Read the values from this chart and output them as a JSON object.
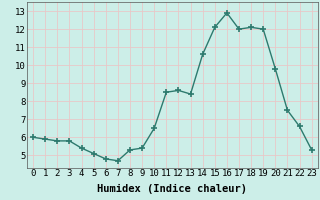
{
  "x": [
    0,
    1,
    2,
    3,
    4,
    5,
    6,
    7,
    8,
    9,
    10,
    11,
    12,
    13,
    14,
    15,
    16,
    17,
    18,
    19,
    20,
    21,
    22,
    23
  ],
  "y": [
    6.0,
    5.9,
    5.8,
    5.8,
    5.4,
    5.1,
    4.8,
    4.7,
    5.3,
    5.4,
    6.5,
    8.5,
    8.6,
    8.4,
    10.6,
    12.1,
    12.9,
    12.0,
    12.1,
    12.0,
    9.8,
    7.5,
    6.6,
    5.3
  ],
  "line_color": "#2d7a6e",
  "marker": "+",
  "marker_size": 4,
  "line_width": 1.0,
  "xlabel": "Humidex (Indice chaleur)",
  "xlim": [
    -0.5,
    23.5
  ],
  "ylim": [
    4.3,
    13.5
  ],
  "yticks": [
    5,
    6,
    7,
    8,
    9,
    10,
    11,
    12,
    13
  ],
  "xticks": [
    0,
    1,
    2,
    3,
    4,
    5,
    6,
    7,
    8,
    9,
    10,
    11,
    12,
    13,
    14,
    15,
    16,
    17,
    18,
    19,
    20,
    21,
    22,
    23
  ],
  "xtick_labels": [
    "0",
    "1",
    "2",
    "3",
    "4",
    "5",
    "6",
    "7",
    "8",
    "9",
    "10",
    "11",
    "12",
    "13",
    "14",
    "15",
    "16",
    "17",
    "18",
    "19",
    "20",
    "21",
    "22",
    "23"
  ],
  "background_color": "#cceee8",
  "grid_color": "#e8c8c8",
  "grid_linewidth": 0.6,
  "xlabel_fontsize": 7.5,
  "tick_fontsize": 6.5
}
